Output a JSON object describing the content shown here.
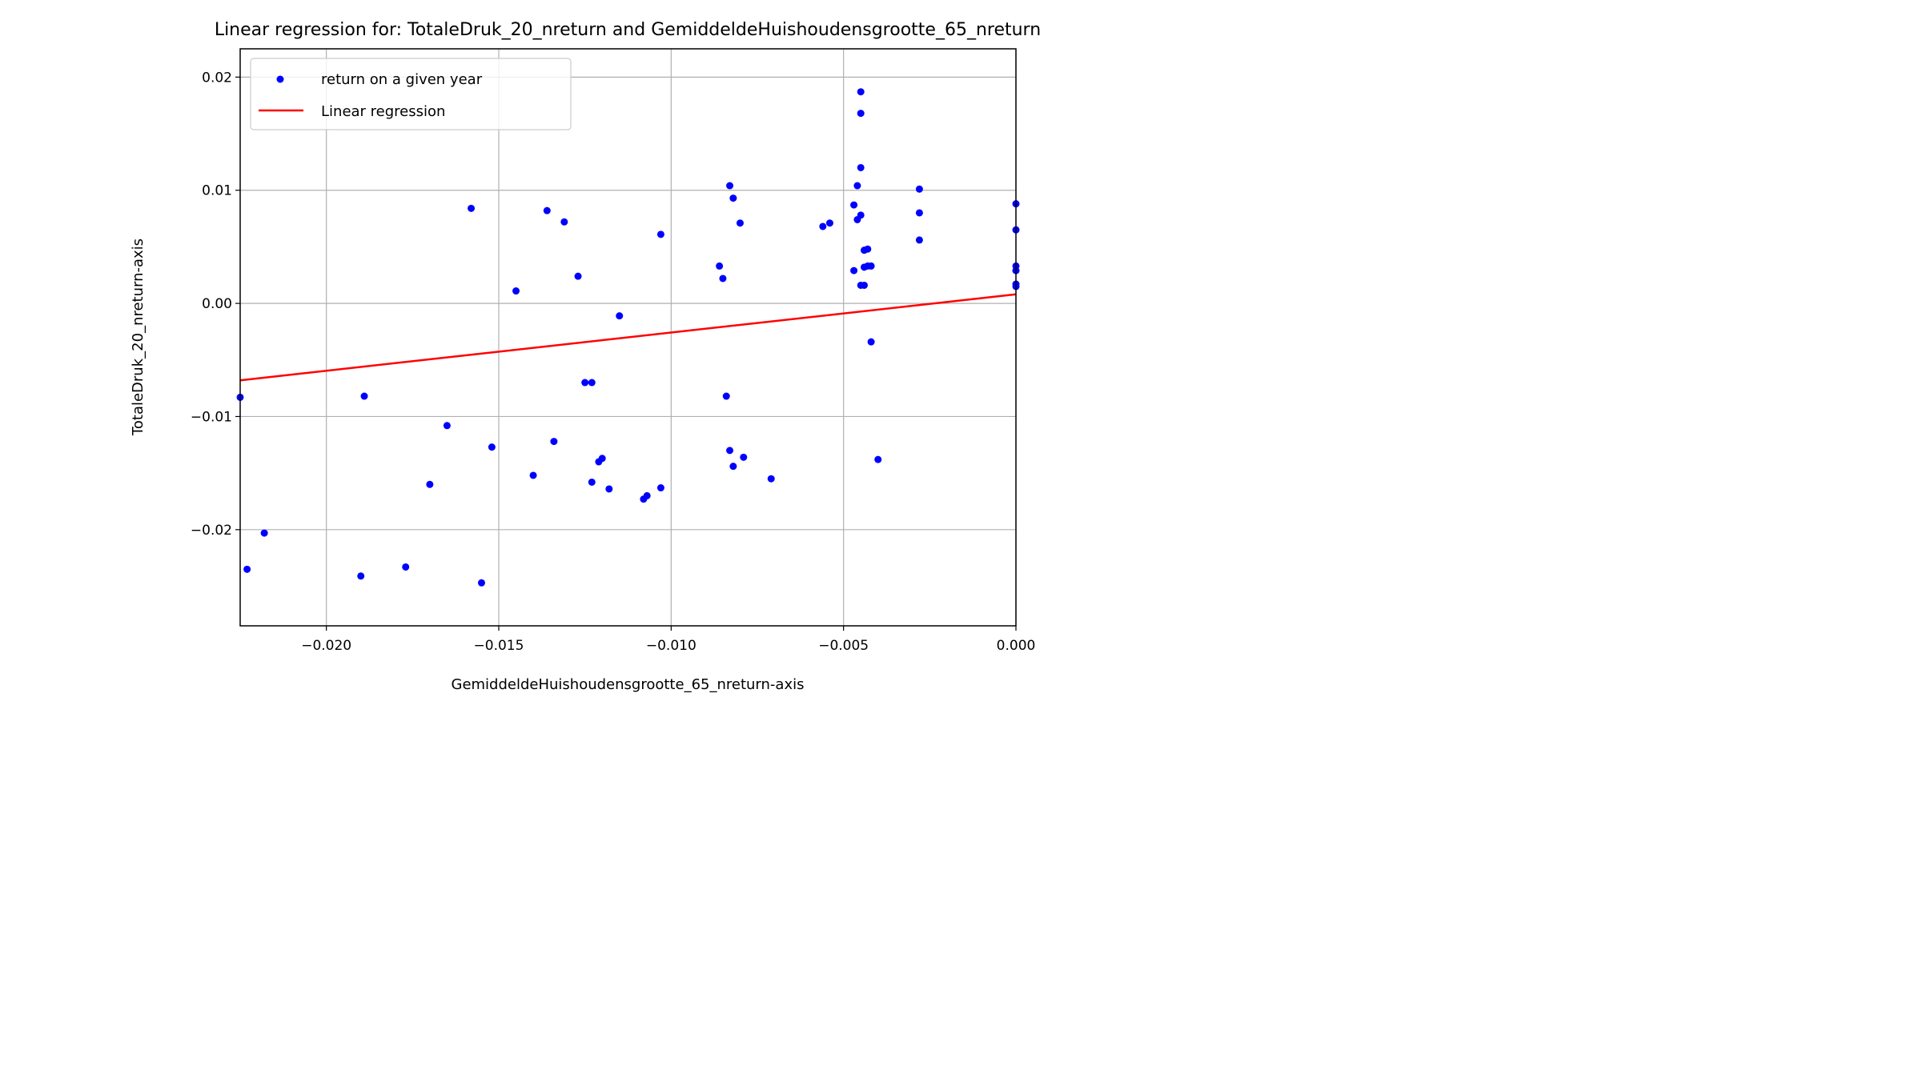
{
  "chart_data": {
    "type": "scatter",
    "title": "Linear regression for: TotaleDruk_20_nreturn and GemiddeldeHuishoudensgrootte_65_nreturn",
    "xlabel": "GemiddeldeHuishoudensgrootte_65_nreturn-axis",
    "ylabel": "TotaleDruk_20_nreturn-axis",
    "xlim": [
      -0.0225,
      0.0
    ],
    "ylim": [
      -0.0285,
      0.0225
    ],
    "xticks": [
      -0.02,
      -0.015,
      -0.01,
      -0.005,
      0.0
    ],
    "xtick_labels": [
      "−0.020",
      "−0.015",
      "−0.010",
      "−0.005",
      "0.000"
    ],
    "yticks": [
      0.02,
      0.01,
      0.0,
      -0.01,
      -0.02
    ],
    "ytick_labels": [
      "0.02",
      "0.01",
      "0.00",
      "−0.01",
      "−0.02"
    ],
    "grid": true,
    "legend_position": "upper-left",
    "series": [
      {
        "name": "return on a given year",
        "kind": "scatter",
        "color": "#0000ff",
        "points": [
          [
            -0.0225,
            -0.0083
          ],
          [
            -0.0223,
            -0.0235
          ],
          [
            -0.0218,
            -0.0203
          ],
          [
            -0.019,
            -0.0241
          ],
          [
            -0.0189,
            -0.0082
          ],
          [
            -0.0177,
            -0.0233
          ],
          [
            -0.017,
            -0.016
          ],
          [
            -0.0165,
            -0.0108
          ],
          [
            -0.0158,
            0.0084
          ],
          [
            -0.0155,
            -0.0247
          ],
          [
            -0.0152,
            -0.0127
          ],
          [
            -0.0145,
            0.0011
          ],
          [
            -0.014,
            -0.0152
          ],
          [
            -0.0136,
            0.0082
          ],
          [
            -0.0134,
            -0.0122
          ],
          [
            -0.0131,
            0.0072
          ],
          [
            -0.0127,
            0.0024
          ],
          [
            -0.0125,
            -0.007
          ],
          [
            -0.0123,
            -0.007
          ],
          [
            -0.0123,
            -0.0158
          ],
          [
            -0.0121,
            -0.014
          ],
          [
            -0.012,
            -0.0137
          ],
          [
            -0.0118,
            -0.0164
          ],
          [
            -0.0115,
            -0.0011
          ],
          [
            -0.0108,
            -0.0173
          ],
          [
            -0.0107,
            -0.017
          ],
          [
            -0.0103,
            0.0061
          ],
          [
            -0.0103,
            -0.0163
          ],
          [
            -0.0086,
            0.0033
          ],
          [
            -0.0085,
            0.0022
          ],
          [
            -0.0084,
            -0.0082
          ],
          [
            -0.0083,
            0.0104
          ],
          [
            -0.0083,
            -0.013
          ],
          [
            -0.0082,
            0.0093
          ],
          [
            -0.0082,
            -0.0144
          ],
          [
            -0.008,
            0.0071
          ],
          [
            -0.0079,
            -0.0136
          ],
          [
            -0.0071,
            -0.0155
          ],
          [
            -0.0056,
            0.0068
          ],
          [
            -0.0054,
            0.0071
          ],
          [
            -0.0047,
            0.0087
          ],
          [
            -0.0047,
            0.0029
          ],
          [
            -0.0046,
            0.0104
          ],
          [
            -0.0046,
            0.0074
          ],
          [
            -0.0045,
            0.0187
          ],
          [
            -0.0045,
            0.0168
          ],
          [
            -0.0045,
            0.012
          ],
          [
            -0.0045,
            0.0078
          ],
          [
            -0.0045,
            0.0016
          ],
          [
            -0.0044,
            0.0047
          ],
          [
            -0.0044,
            0.0032
          ],
          [
            -0.0044,
            0.0016
          ],
          [
            -0.0043,
            0.0048
          ],
          [
            -0.0043,
            0.0033
          ],
          [
            -0.0042,
            0.0033
          ],
          [
            -0.0042,
            -0.0034
          ],
          [
            -0.004,
            -0.0138
          ],
          [
            -0.0028,
            0.0101
          ],
          [
            -0.0028,
            0.008
          ],
          [
            -0.0028,
            0.0056
          ],
          [
            0.0,
            0.0088
          ],
          [
            0.0,
            0.0065
          ],
          [
            0.0,
            0.0033
          ],
          [
            0.0,
            0.0029
          ],
          [
            0.0,
            0.0017
          ],
          [
            0.0,
            0.0015
          ]
        ]
      },
      {
        "name": "Linear regression",
        "kind": "line",
        "color": "#ff0000",
        "points": [
          [
            -0.0225,
            -0.0068
          ],
          [
            0.0,
            0.0008
          ]
        ]
      }
    ]
  }
}
